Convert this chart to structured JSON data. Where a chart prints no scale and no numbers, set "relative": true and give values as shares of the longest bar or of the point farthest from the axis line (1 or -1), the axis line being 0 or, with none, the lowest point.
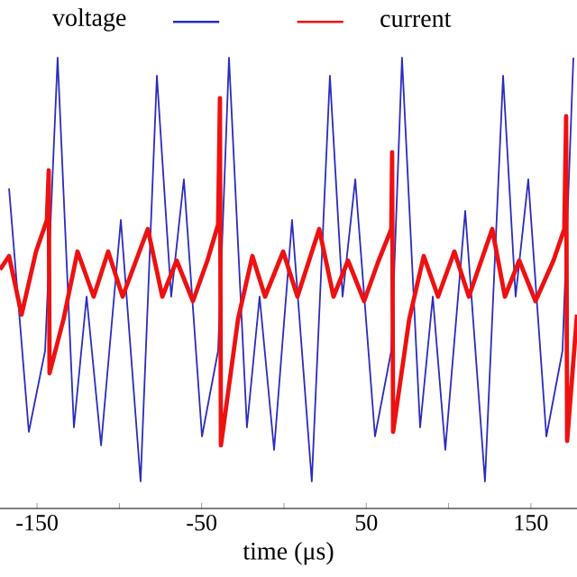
{
  "chart_data": {
    "type": "line",
    "relative": true,
    "xlabel": "time (μs)",
    "xlim": [
      -172.5,
      178
    ],
    "xticks": [
      -150,
      {
        "value": -100,
        "label": null
      },
      -50,
      {
        "value": 0,
        "label": null
      },
      50,
      {
        "value": 100,
        "label": null
      },
      150
    ],
    "legend": "top",
    "grid": false,
    "marker": "none",
    "line_style": "solid",
    "series": [
      {
        "name": "voltage",
        "color": "#2b2bbd",
        "x": [
          -167.0,
          -155.0,
          -145.1,
          -137.5,
          -127.6,
          -119.9,
          -111.1,
          -99.1,
          -87.1,
          -77.2,
          -68.5,
          -60.8,
          -49.8,
          -40.0,
          -33.4,
          -22.5,
          -14.8,
          -6.0,
          4.9,
          16.9,
          27.9,
          35.6,
          43.3,
          55.3,
          65.2,
          71.7,
          82.7,
          90.4,
          98.0,
          110.1,
          122.1,
          133.1,
          140.7,
          148.4,
          159.4,
          169.2,
          175.8
        ],
        "values": [
          0.71,
          0.17,
          0.35,
          1.0,
          0.18,
          0.47,
          0.14,
          0.64,
          0.06,
          0.96,
          0.47,
          0.73,
          0.16,
          0.35,
          1.0,
          0.18,
          0.47,
          0.13,
          0.64,
          0.06,
          0.96,
          0.47,
          0.73,
          0.16,
          0.35,
          1.0,
          0.18,
          0.47,
          0.13,
          0.66,
          0.06,
          0.96,
          0.47,
          0.73,
          0.16,
          0.35,
          1.0
        ]
      },
      {
        "name": "current",
        "color": "#ee1111",
        "x": [
          -172.5,
          -167.0,
          -159.4,
          -150.6,
          -144.0,
          -142.9,
          -142.4,
          -133.9,
          -125.4,
          -115.6,
          -106.8,
          -98.0,
          -82.7,
          -73.9,
          -65.2,
          -55.3,
          -46.5,
          -40.0,
          -38.9,
          -38.3,
          -27.9,
          -19.2,
          -11.5,
          -0.5,
          8.2,
          21.4,
          30.1,
          38.9,
          48.7,
          57.5,
          65.2,
          65.7,
          66.3,
          76.1,
          84.9,
          93.6,
          103.5,
          112.3,
          126.5,
          134.2,
          142.9,
          152.8,
          163.7,
          170.3,
          171.4,
          172.0,
          178.0
        ],
        "values": [
          0.53,
          0.56,
          0.43,
          0.57,
          0.64,
          0.75,
          0.3,
          0.42,
          0.57,
          0.47,
          0.57,
          0.47,
          0.62,
          0.47,
          0.55,
          0.46,
          0.55,
          0.63,
          0.91,
          0.14,
          0.42,
          0.56,
          0.47,
          0.57,
          0.47,
          0.62,
          0.47,
          0.55,
          0.46,
          0.55,
          0.62,
          0.79,
          0.17,
          0.42,
          0.56,
          0.47,
          0.57,
          0.47,
          0.62,
          0.47,
          0.55,
          0.46,
          0.55,
          0.62,
          0.87,
          0.15,
          0.43
        ]
      }
    ]
  }
}
